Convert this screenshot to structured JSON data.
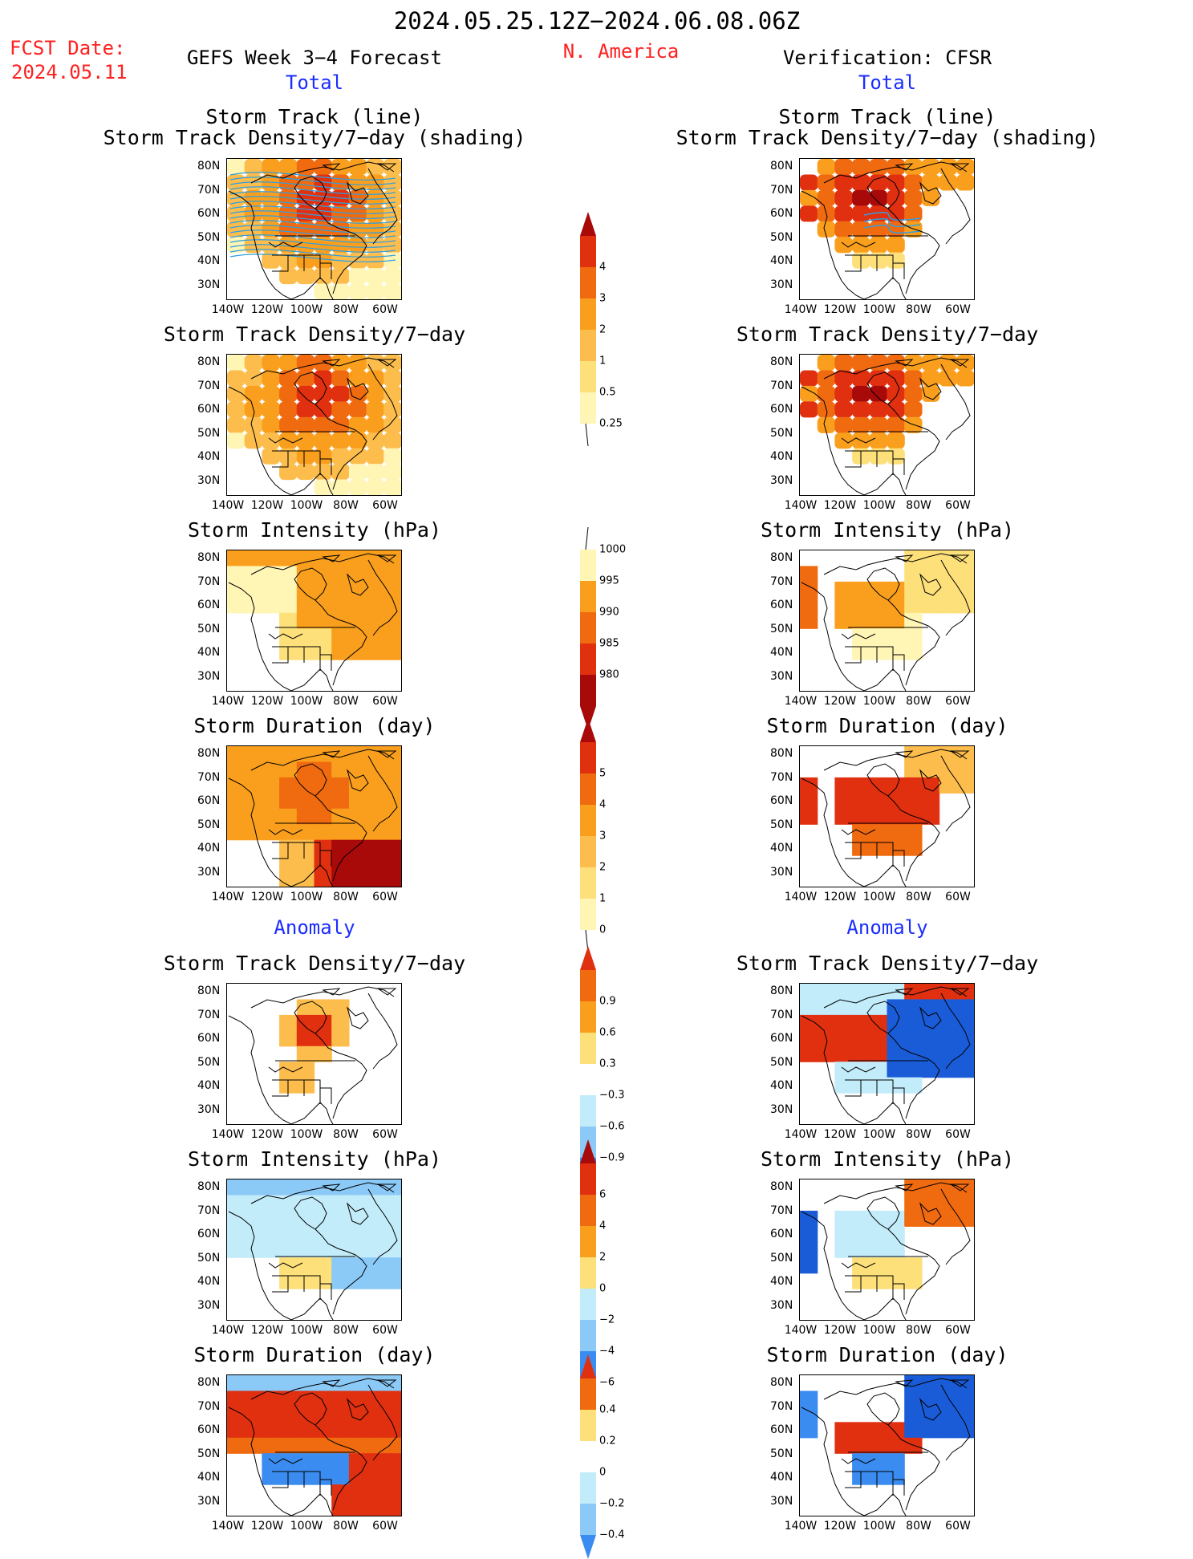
{
  "header": {
    "date_range": "2024.05.25.12Z−2024.06.08.06Z",
    "fcst_label": "FCST Date:",
    "fcst_date": "2024.05.11",
    "left_title": "GEFS Week 3−4 Forecast",
    "region": "N. America",
    "right_title": "Verification: CFSR",
    "total_left": "Total",
    "total_right": "Total",
    "anomaly_left": "Anomaly",
    "anomaly_right": "Anomaly"
  },
  "panel_titles": {
    "track_line": "Storm Track (line)",
    "track_shading": "Storm Track Density/7−day (shading)",
    "density": "Storm Track Density/7−day",
    "intensity": "Storm Intensity (hPa)",
    "duration": "Storm Duration (day)"
  },
  "axes": {
    "lat_labels": [
      "80N",
      "70N",
      "60N",
      "50N",
      "40N",
      "30N"
    ],
    "lon_labels": [
      "140W",
      "120W",
      "100W",
      "80W",
      "60W"
    ]
  },
  "colorbars": {
    "density_total": [
      "4",
      "3",
      "2",
      "1",
      "0.5",
      "0.25"
    ],
    "intensity_total": [
      "1000",
      "995",
      "990",
      "985",
      "980"
    ],
    "duration_total": [
      "5",
      "4",
      "3",
      "2",
      "1",
      "0"
    ],
    "density_anom": [
      "0.9",
      "0.6",
      "0.3",
      "−0.3",
      "−0.6",
      "−0.9"
    ],
    "intensity_anom": [
      "6",
      "4",
      "2",
      "0",
      "−2",
      "−4",
      "−6"
    ],
    "duration_anom": [
      "0.4",
      "0.2",
      "0",
      "−0.2",
      "−0.4"
    ]
  },
  "colors": {
    "pale_yellow": "#fff5b5",
    "yellow": "#fde07a",
    "light_orange": "#fcbd4c",
    "orange": "#fa9f1d",
    "dark_orange": "#f06a10",
    "red": "#e03010",
    "dark_red": "#a80a0a",
    "light_blue": "#c3ecfa",
    "mid_blue": "#8bc9f7",
    "blue": "#3b8cf0",
    "dark_blue": "#1a5cd8",
    "track_line": "#2f9fe0"
  }
}
